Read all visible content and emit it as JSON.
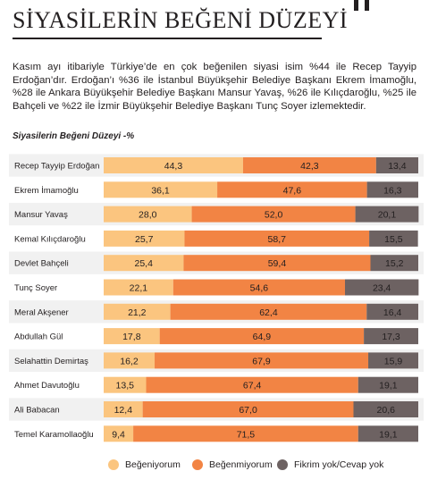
{
  "header": {
    "title": "SİYASİLERİN BEĞENİ DÜZEYİ"
  },
  "intro": "Kasım ayı itibariyle Türkiye’de en çok beğenilen siyasi isim %44 ile Recep Tayyip Erdoğan’dır. Erdoğan’ı %36 ile İstanbul Büyükşehir Belediye Başkanı Ekrem İmamoğlu, %28 ile Ankara Büyükşehir Belediye Başkanı Mansur Yavaş, %26 ile Kılıçdaroğlu, %25 ile Bahçeli ve %22 ile İzmir Büyükşehir Belediye Başkanı Tunç Soyer izlemektedir.",
  "colors": {
    "begeniyorum": "#fbc57f",
    "begenmiyorum": "#f28444",
    "fikrim_yok": "#6d6262",
    "row_stripe": "#f1f1f1"
  },
  "chart_data": {
    "type": "bar",
    "stacked": true,
    "orientation": "horizontal",
    "title": "Siyasilerin Beğeni Düzeyi -%",
    "categories": [
      "Recep Tayyip Erdoğan",
      "Ekrem İmamoğlu",
      "Mansur Yavaş",
      "Kemal Kılıçdaroğlu",
      "Devlet Bahçeli",
      "Tunç Soyer",
      "Meral Akşener",
      "Abdullah Gül",
      "Selahattin Demirtaş",
      "Ahmet Davutoğlu",
      "Ali Babacan",
      "Temel Karamollaoğlu"
    ],
    "series": [
      {
        "name": "Beğeniyorum",
        "values": [
          44.3,
          36.1,
          28.0,
          25.7,
          25.4,
          22.1,
          21.2,
          17.8,
          16.2,
          13.5,
          12.4,
          9.4
        ],
        "labels": [
          "44,3",
          "36,1",
          "28,0",
          "25,7",
          "25,4",
          "22,1",
          "21,2",
          "17,8",
          "16,2",
          "13,5",
          "12,4",
          "9,4"
        ]
      },
      {
        "name": "Beğenmiyorum",
        "values": [
          42.3,
          47.6,
          52.0,
          58.7,
          59.4,
          54.6,
          62.4,
          64.9,
          67.9,
          67.4,
          67.0,
          71.5
        ],
        "labels": [
          "42,3",
          "47,6",
          "52,0",
          "58,7",
          "59,4",
          "54,6",
          "62,4",
          "64,9",
          "67,9",
          "67,4",
          "67,0",
          "71,5"
        ]
      },
      {
        "name": "Fikrim yok/Cevap yok",
        "values": [
          13.4,
          16.3,
          20.1,
          15.5,
          15.2,
          23.4,
          16.4,
          17.3,
          15.9,
          19.1,
          20.6,
          19.1
        ],
        "labels": [
          "13,4",
          "16,3",
          "20,1",
          "15,5",
          "15,2",
          "23,4",
          "16,4",
          "17,3",
          "15,9",
          "19,1",
          "20,6",
          "19,1"
        ]
      }
    ],
    "xlim": [
      0,
      100
    ],
    "grid": false,
    "legend_position": "bottom"
  }
}
